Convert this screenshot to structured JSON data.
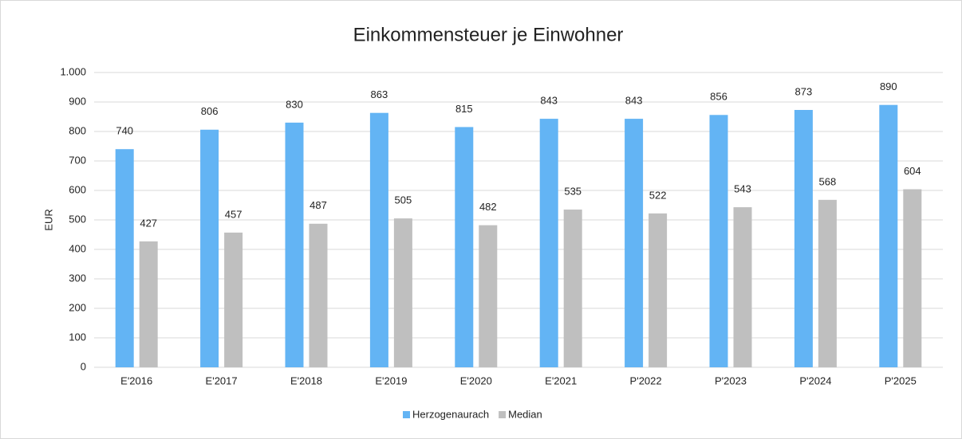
{
  "chart_data": {
    "type": "bar",
    "title": "Einkommensteuer je Einwohner",
    "y_label": "EUR",
    "categories": [
      "E'2016",
      "E'2017",
      "E'2018",
      "E'2019",
      "E'2020",
      "E'2021",
      "P'2022",
      "P'2023",
      "P'2024",
      "P'2025"
    ],
    "series": [
      {
        "name": "Herzogenaurach",
        "color": "#63b4f4",
        "values": [
          740,
          806,
          830,
          863,
          815,
          843,
          843,
          856,
          873,
          890
        ]
      },
      {
        "name": "Median",
        "color": "#bfbfbf",
        "values": [
          427,
          457,
          487,
          505,
          482,
          535,
          522,
          543,
          568,
          604
        ]
      }
    ],
    "ylim": [
      0,
      1000
    ],
    "yticks": [
      0,
      100,
      200,
      300,
      400,
      500,
      600,
      700,
      800,
      900,
      {
        "value": 1000,
        "label": "1.000"
      }
    ],
    "grid": true,
    "legend": "bottom"
  }
}
